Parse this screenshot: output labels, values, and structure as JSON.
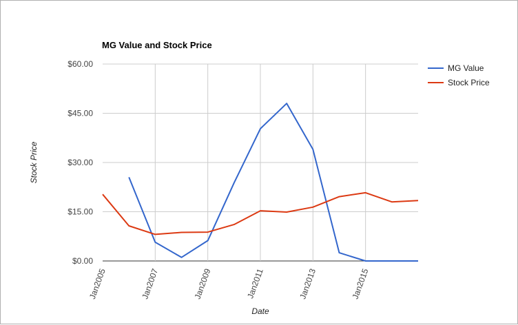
{
  "chart_data": {
    "type": "line",
    "title": "MG Value and Stock Price",
    "xlabel": "Date",
    "ylabel": "Stock Price",
    "x": [
      "2005-01",
      "2006-01",
      "2007-01",
      "2008-01",
      "2009-01",
      "2010-01",
      "2011-01",
      "2012-01",
      "2013-01",
      "2014-01",
      "2015-01",
      "2016-01",
      "2017-01"
    ],
    "x_tick_labels": [
      "Jan2005",
      "Jan2007",
      "Jan2009",
      "Jan2011",
      "Jan2013",
      "Jan2015"
    ],
    "y_tick_labels": [
      "$0.00",
      "$15.00",
      "$30.00",
      "$45.00",
      "$60.00"
    ],
    "ylim": [
      0,
      60
    ],
    "grid": true,
    "legend_position": "right",
    "series": [
      {
        "name": "MG Value",
        "color": "#3366cc",
        "values": [
          null,
          25.5,
          5.7,
          1.1,
          6.2,
          23.8,
          40.3,
          48.0,
          34.0,
          2.5,
          0.0,
          0.0,
          0.0
        ]
      },
      {
        "name": "Stock Price",
        "color": "#dc3912",
        "values": [
          20.3,
          10.7,
          8.1,
          8.7,
          8.8,
          11.1,
          15.3,
          14.9,
          16.4,
          19.6,
          20.8,
          18.0,
          18.4
        ]
      }
    ]
  }
}
